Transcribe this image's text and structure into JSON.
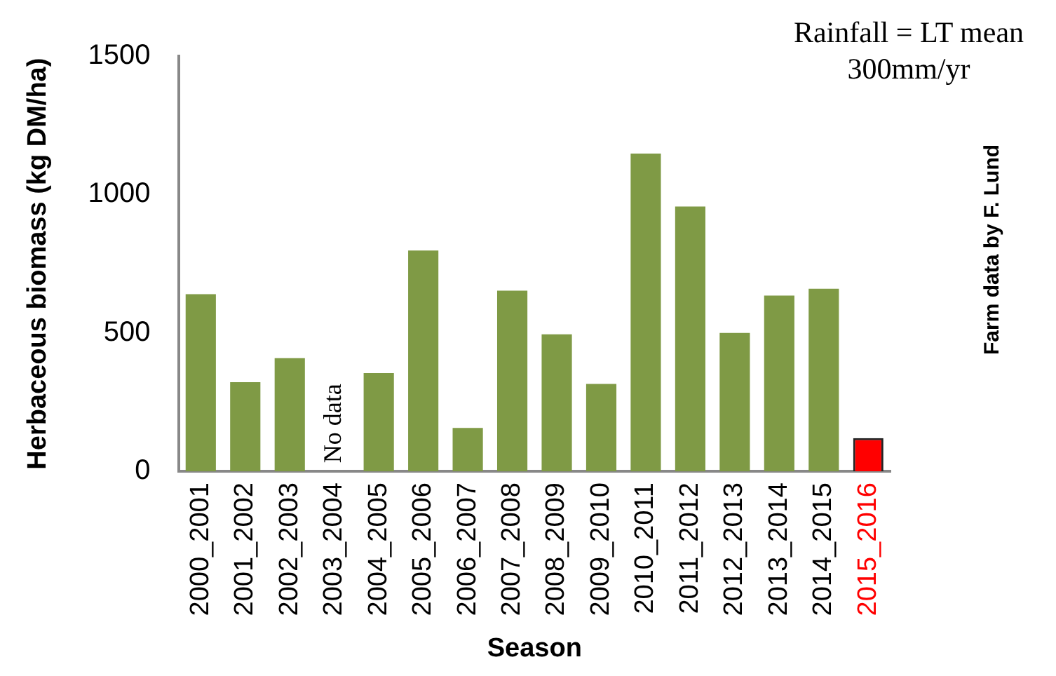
{
  "chart_data": {
    "type": "bar",
    "xlabel": "Season",
    "ylabel": "Herbaceous biomass (kg DM/ha)",
    "categories": [
      "2000_2001",
      "2001_2002",
      "2002_2003",
      "2003_2004",
      "2004_2005",
      "2005_2006",
      "2006_2007",
      "2007_2008",
      "2008_2009",
      "2009_2010",
      "2010_2011",
      "2011_2012",
      "2012_2013",
      "2013_2014",
      "2014_2015",
      "2015_2016"
    ],
    "values": [
      640,
      322,
      409,
      null,
      355,
      798,
      157,
      653,
      495,
      316,
      1148,
      957,
      500,
      635,
      660,
      120
    ],
    "colors": [
      "#7f9a45",
      "#7f9a45",
      "#7f9a45",
      "#7f9a45",
      "#7f9a45",
      "#7f9a45",
      "#7f9a45",
      "#7f9a45",
      "#7f9a45",
      "#7f9a45",
      "#7f9a45",
      "#7f9a45",
      "#7f9a45",
      "#7f9a45",
      "#7f9a45",
      "#ff0000"
    ],
    "ylim": [
      0,
      1500
    ],
    "yticks": [
      0,
      500,
      1000,
      1500
    ],
    "grid": false,
    "legend": false,
    "annotations": [
      "No data",
      "Rainfall = LT mean\n300mm/yr",
      "Farm data by F. Lund"
    ]
  }
}
